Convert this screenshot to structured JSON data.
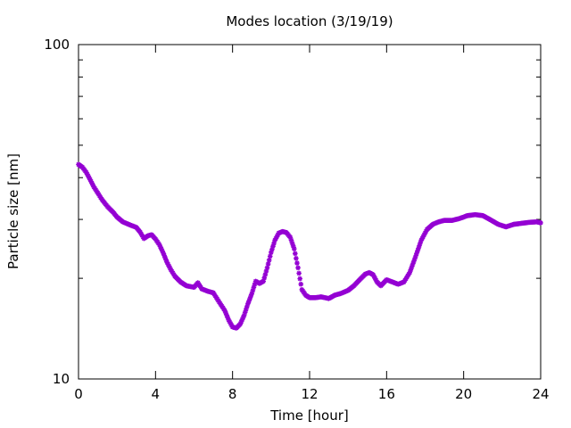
{
  "chart_data": {
    "type": "scatter",
    "title": "Modes location (3/19/19)",
    "xlabel": "Time [hour]",
    "ylabel": "Particle size [nm]",
    "xlim": [
      0,
      24
    ],
    "ylim": [
      10,
      100
    ],
    "yscale": "log",
    "x_ticks": [
      0,
      4,
      8,
      12,
      16,
      20,
      24
    ],
    "x_tick_labels": [
      "0",
      "4",
      "8",
      "12",
      "16",
      "20",
      "24"
    ],
    "y_tick_labels": [
      "10",
      "100"
    ],
    "grid": false,
    "legend": "none",
    "marker_color": "#9400d3",
    "marker": "star",
    "series": [
      {
        "x": [
          0,
          0.2,
          0.4,
          0.6,
          0.8,
          1.0,
          1.2,
          1.5,
          1.8,
          2.0,
          2.3,
          2.6,
          3.0,
          3.2,
          3.4,
          3.6,
          3.8,
          4.0,
          4.2,
          4.4,
          4.6,
          4.8,
          5.0,
          5.3,
          5.6,
          6.0,
          6.2,
          6.4,
          6.7,
          7.0,
          7.3,
          7.6,
          7.8,
          8.0,
          8.2,
          8.4,
          8.6,
          8.8,
          9.0,
          9.2,
          9.4,
          9.6,
          9.8,
          10.0,
          10.2,
          10.4,
          10.6,
          10.8,
          11.0,
          11.2,
          11.4,
          11.6,
          11.8,
          12.0,
          12.3,
          12.6,
          13.0,
          13.3,
          13.6,
          14.0,
          14.3,
          14.6,
          14.9,
          15.1,
          15.3,
          15.5,
          15.7,
          16.0,
          16.3,
          16.6,
          16.9,
          17.2,
          17.5,
          17.8,
          18.1,
          18.4,
          18.7,
          19.0,
          19.4,
          19.8,
          20.2,
          20.6,
          21.0,
          21.4,
          21.8,
          22.2,
          22.6,
          23.0,
          23.4,
          23.8,
          24.0
        ],
        "y": [
          43.8,
          43.0,
          41.5,
          39.5,
          37.5,
          36.0,
          34.5,
          32.8,
          31.5,
          30.5,
          29.5,
          29.0,
          28.4,
          27.5,
          26.3,
          26.8,
          27.0,
          26.2,
          25.2,
          23.8,
          22.3,
          21.2,
          20.3,
          19.5,
          19.0,
          18.8,
          19.4,
          18.6,
          18.3,
          18.1,
          17.0,
          16.0,
          15.0,
          14.3,
          14.2,
          14.6,
          15.5,
          16.8,
          18.0,
          19.6,
          19.3,
          19.6,
          21.5,
          23.9,
          26.0,
          27.3,
          27.6,
          27.4,
          26.5,
          24.5,
          21.5,
          18.5,
          17.8,
          17.5,
          17.5,
          17.6,
          17.4,
          17.8,
          18.0,
          18.4,
          19.0,
          19.8,
          20.6,
          20.8,
          20.5,
          19.5,
          19.0,
          19.8,
          19.5,
          19.2,
          19.5,
          20.8,
          23.2,
          26.0,
          28.0,
          29.0,
          29.5,
          29.8,
          29.8,
          30.2,
          30.8,
          31.0,
          30.8,
          29.9,
          29.0,
          28.5,
          29.0,
          29.2,
          29.4,
          29.5,
          29.3
        ]
      }
    ]
  }
}
